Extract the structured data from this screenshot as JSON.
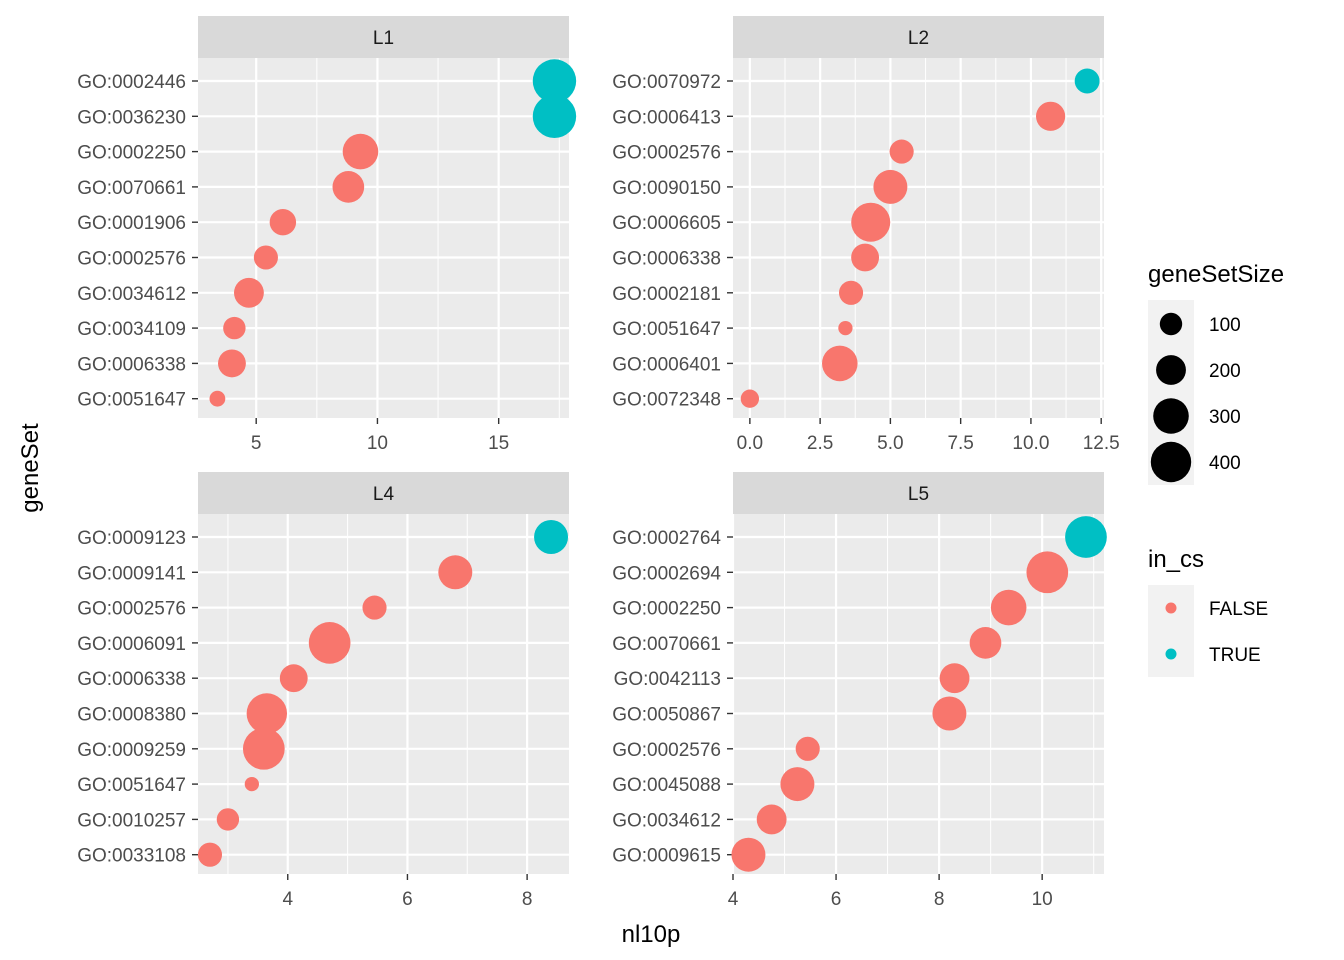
{
  "chart_data": {
    "type": "scatter",
    "xlabel": "nl10p",
    "ylabel": "geneSet",
    "colors": {
      "FALSE": "#F8766D",
      "TRUE": "#00BFC4"
    },
    "size_legend": {
      "title": "geneSetSize",
      "breaks": [
        "100",
        "200",
        "300",
        "400"
      ]
    },
    "color_legend": {
      "title": "in_cs",
      "entries": [
        "FALSE",
        "TRUE"
      ]
    },
    "panels": [
      {
        "strip": "L1",
        "xlim": [
          2.6,
          17.9
        ],
        "xticks": [
          5,
          10,
          15
        ],
        "xtick_labels": [
          "5",
          "10",
          "15"
        ],
        "points": [
          {
            "geneSet": "GO:0002446",
            "nl10p": 17.3,
            "geneSetSize": 470,
            "in_cs": true
          },
          {
            "geneSet": "GO:0036230",
            "nl10p": 17.3,
            "geneSetSize": 470,
            "in_cs": true
          },
          {
            "geneSet": "GO:0002250",
            "nl10p": 9.3,
            "geneSetSize": 300,
            "in_cs": false
          },
          {
            "geneSet": "GO:0070661",
            "nl10p": 8.8,
            "geneSetSize": 230,
            "in_cs": false
          },
          {
            "geneSet": "GO:0001906",
            "nl10p": 6.1,
            "geneSetSize": 150,
            "in_cs": false
          },
          {
            "geneSet": "GO:0002576",
            "nl10p": 5.4,
            "geneSetSize": 120,
            "in_cs": false
          },
          {
            "geneSet": "GO:0034612",
            "nl10p": 4.7,
            "geneSetSize": 200,
            "in_cs": false
          },
          {
            "geneSet": "GO:0034109",
            "nl10p": 4.1,
            "geneSetSize": 100,
            "in_cs": false
          },
          {
            "geneSet": "GO:0006338",
            "nl10p": 4.0,
            "geneSetSize": 170,
            "in_cs": false
          },
          {
            "geneSet": "GO:0051647",
            "nl10p": 3.4,
            "geneSetSize": 40,
            "in_cs": false
          }
        ]
      },
      {
        "strip": "L2",
        "xlim": [
          -0.6,
          12.6
        ],
        "xticks": [
          0,
          2.5,
          5,
          7.5,
          10,
          12.5
        ],
        "xtick_labels": [
          "0.0",
          "2.5",
          "5.0",
          "7.5",
          "10.0",
          "12.5"
        ],
        "points": [
          {
            "geneSet": "GO:0070972",
            "nl10p": 12.0,
            "geneSetSize": 130,
            "in_cs": true
          },
          {
            "geneSet": "GO:0006413",
            "nl10p": 10.7,
            "geneSetSize": 190,
            "in_cs": false
          },
          {
            "geneSet": "GO:0002576",
            "nl10p": 5.4,
            "geneSetSize": 120,
            "in_cs": false
          },
          {
            "geneSet": "GO:0090150",
            "nl10p": 5.0,
            "geneSetSize": 270,
            "in_cs": false
          },
          {
            "geneSet": "GO:0006605",
            "nl10p": 4.3,
            "geneSetSize": 370,
            "in_cs": false
          },
          {
            "geneSet": "GO:0006338",
            "nl10p": 4.1,
            "geneSetSize": 170,
            "in_cs": false
          },
          {
            "geneSet": "GO:0002181",
            "nl10p": 3.6,
            "geneSetSize": 120,
            "in_cs": false
          },
          {
            "geneSet": "GO:0051647",
            "nl10p": 3.4,
            "geneSetSize": 30,
            "in_cs": false
          },
          {
            "geneSet": "GO:0006401",
            "nl10p": 3.2,
            "geneSetSize": 300,
            "in_cs": false
          },
          {
            "geneSet": "GO:0072348",
            "nl10p": 0.0,
            "geneSetSize": 60,
            "in_cs": false
          }
        ]
      },
      {
        "strip": "L4",
        "xlim": [
          2.5,
          8.7
        ],
        "xticks": [
          4,
          6,
          8
        ],
        "xtick_labels": [
          "4",
          "6",
          "8"
        ],
        "points": [
          {
            "geneSet": "GO:0009123",
            "nl10p": 8.4,
            "geneSetSize": 270,
            "in_cs": true
          },
          {
            "geneSet": "GO:0009141",
            "nl10p": 6.8,
            "geneSetSize": 270,
            "in_cs": false
          },
          {
            "geneSet": "GO:0002576",
            "nl10p": 5.45,
            "geneSetSize": 120,
            "in_cs": false
          },
          {
            "geneSet": "GO:0006091",
            "nl10p": 4.7,
            "geneSetSize": 430,
            "in_cs": false
          },
          {
            "geneSet": "GO:0006338",
            "nl10p": 4.1,
            "geneSetSize": 170,
            "in_cs": false
          },
          {
            "geneSet": "GO:0008380",
            "nl10p": 3.65,
            "geneSetSize": 400,
            "in_cs": false
          },
          {
            "geneSet": "GO:0009259",
            "nl10p": 3.6,
            "geneSetSize": 430,
            "in_cs": false
          },
          {
            "geneSet": "GO:0051647",
            "nl10p": 3.4,
            "geneSetSize": 30,
            "in_cs": false
          },
          {
            "geneSet": "GO:0010257",
            "nl10p": 3.0,
            "geneSetSize": 100,
            "in_cs": false
          },
          {
            "geneSet": "GO:0033108",
            "nl10p": 2.7,
            "geneSetSize": 120,
            "in_cs": false
          }
        ]
      },
      {
        "strip": "L5",
        "xlim": [
          4.0,
          11.2
        ],
        "xticks": [
          4,
          6,
          8,
          10
        ],
        "xtick_labels": [
          "4",
          "6",
          "8",
          "10"
        ],
        "points": [
          {
            "geneSet": "GO:0002764",
            "nl10p": 10.85,
            "geneSetSize": 430,
            "in_cs": true
          },
          {
            "geneSet": "GO:0002694",
            "nl10p": 10.1,
            "geneSetSize": 430,
            "in_cs": false
          },
          {
            "geneSet": "GO:0002250",
            "nl10p": 9.35,
            "geneSetSize": 300,
            "in_cs": false
          },
          {
            "geneSet": "GO:0070661",
            "nl10p": 8.9,
            "geneSetSize": 230,
            "in_cs": false
          },
          {
            "geneSet": "GO:0042113",
            "nl10p": 8.3,
            "geneSetSize": 200,
            "in_cs": false
          },
          {
            "geneSet": "GO:0050867",
            "nl10p": 8.2,
            "geneSetSize": 270,
            "in_cs": false
          },
          {
            "geneSet": "GO:0002576",
            "nl10p": 5.45,
            "geneSetSize": 120,
            "in_cs": false
          },
          {
            "geneSet": "GO:0045088",
            "nl10p": 5.25,
            "geneSetSize": 270,
            "in_cs": false
          },
          {
            "geneSet": "GO:0034612",
            "nl10p": 4.75,
            "geneSetSize": 200,
            "in_cs": false
          },
          {
            "geneSet": "GO:0009615",
            "nl10p": 4.3,
            "geneSetSize": 270,
            "in_cs": false
          }
        ]
      }
    ]
  }
}
